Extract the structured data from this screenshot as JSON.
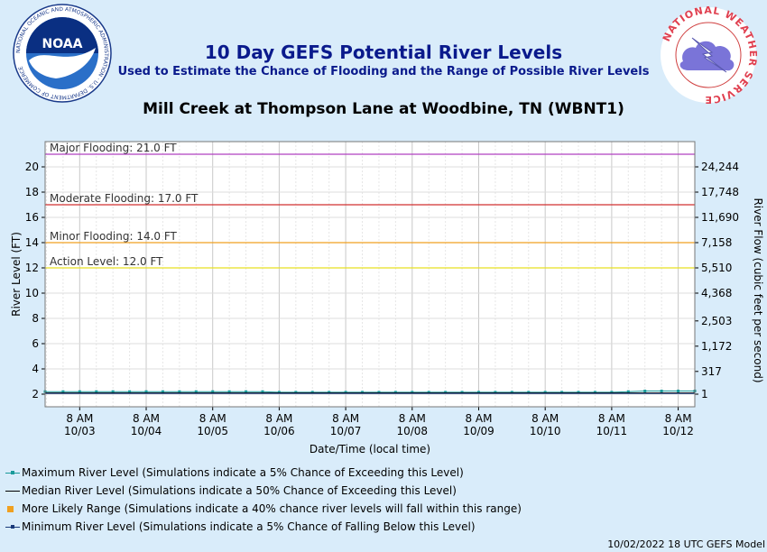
{
  "header": {
    "title": "10 Day GEFS Potential River Levels",
    "subtitle": "Used to Estimate the Chance of Flooding and the Range of Possible River Levels",
    "location": "Mill Creek at Thompson Lane at Woodbine, TN (WBNT1)"
  },
  "logos": {
    "noaa_ring": "NATIONAL OCEANIC AND ATMOSPHERIC ADMINISTRATION · U.S. DEPARTMENT OF COMMERCE",
    "noaa_word": "NOAA",
    "nws_ring": "NATIONAL WEATHER SERVICE"
  },
  "chart_data": {
    "type": "line",
    "xlabel": "Date/Time (local time)",
    "ylabel": "River Level (FT)",
    "y2label": "River Flow (cubic feet per second)",
    "ylim": [
      1,
      22
    ],
    "yticks": [
      2,
      4,
      6,
      8,
      10,
      12,
      14,
      16,
      18,
      20
    ],
    "y2ticks": [
      {
        "stage": 2,
        "label": "1"
      },
      {
        "stage": 3.8,
        "label": "317"
      },
      {
        "stage": 5.8,
        "label": "1,172"
      },
      {
        "stage": 7.8,
        "label": "2,503"
      },
      {
        "stage": 10,
        "label": "4,368"
      },
      {
        "stage": 12,
        "label": "5,510"
      },
      {
        "stage": 14,
        "label": "7,158"
      },
      {
        "stage": 16,
        "label": "11,690"
      },
      {
        "stage": 18,
        "label": "17,748"
      },
      {
        "stage": 20,
        "label": "24,244"
      }
    ],
    "xticks": [
      {
        "t": 0,
        "line1": "8 AM",
        "line2": "10/03"
      },
      {
        "t": 1,
        "line1": "8 AM",
        "line2": "10/04"
      },
      {
        "t": 2,
        "line1": "8 AM",
        "line2": "10/05"
      },
      {
        "t": 3,
        "line1": "8 AM",
        "line2": "10/06"
      },
      {
        "t": 4,
        "line1": "8 AM",
        "line2": "10/07"
      },
      {
        "t": 5,
        "line1": "8 AM",
        "line2": "10/08"
      },
      {
        "t": 6,
        "line1": "8 AM",
        "line2": "10/09"
      },
      {
        "t": 7,
        "line1": "8 AM",
        "line2": "10/10"
      },
      {
        "t": 8,
        "line1": "8 AM",
        "line2": "10/11"
      },
      {
        "t": 9,
        "line1": "8 AM",
        "line2": "10/12"
      }
    ],
    "xlim": [
      -0.52,
      9.25
    ],
    "thresholds": [
      {
        "label": "Major Flooding: 21.0 FT",
        "value": 21.0,
        "color": "#b040c0"
      },
      {
        "label": "Moderate Flooding: 17.0 FT",
        "value": 17.0,
        "color": "#d03030"
      },
      {
        "label": "Minor Flooding: 14.0 FT",
        "value": 14.0,
        "color": "#f0a020"
      },
      {
        "label": "Action Level: 12.0 FT",
        "value": 12.0,
        "color": "#e8e020"
      }
    ],
    "series": [
      {
        "key": "max",
        "color": "#1a9a9a",
        "x": [
          -0.52,
          -0.25,
          0.0,
          0.25,
          0.5,
          0.75,
          1.0,
          1.25,
          1.5,
          1.75,
          2.0,
          2.25,
          2.5,
          2.75,
          3.0,
          3.25,
          3.5,
          3.75,
          4.0,
          4.25,
          4.5,
          4.75,
          5.0,
          5.25,
          5.5,
          5.75,
          6.0,
          6.25,
          6.5,
          6.75,
          7.0,
          7.25,
          7.5,
          7.75,
          8.0,
          8.25,
          8.5,
          8.75,
          9.0,
          9.25
        ],
        "y": [
          2.2,
          2.2,
          2.2,
          2.2,
          2.2,
          2.2,
          2.2,
          2.2,
          2.2,
          2.2,
          2.2,
          2.2,
          2.2,
          2.2,
          2.15,
          2.15,
          2.15,
          2.15,
          2.15,
          2.15,
          2.15,
          2.15,
          2.15,
          2.15,
          2.15,
          2.15,
          2.15,
          2.15,
          2.15,
          2.15,
          2.15,
          2.15,
          2.15,
          2.15,
          2.15,
          2.2,
          2.25,
          2.25,
          2.25,
          2.25
        ]
      },
      {
        "key": "median",
        "color": "#000000",
        "x": [
          -0.52,
          9.25
        ],
        "y": [
          2.1,
          2.1
        ]
      },
      {
        "key": "min",
        "color": "#1a3a7a",
        "x": [
          -0.52,
          9.25
        ],
        "y": [
          2.05,
          2.05
        ]
      }
    ]
  },
  "legend": {
    "items": [
      {
        "key": "max",
        "label": "Maximum River Level (Simulations indicate a 5% Chance of Exceeding this Level)",
        "color": "#1a9a9a"
      },
      {
        "key": "median",
        "label": "Median River Level (Simulations indicate a 50% Chance of Exceeding this Level)",
        "color": "#000000"
      },
      {
        "key": "range",
        "label": "More Likely Range (Simulations indicate a 40% chance river levels will fall within this range)",
        "color": "#f0a020"
      },
      {
        "key": "min",
        "label": "Minimum River Level (Simulations indicate a 5% Chance of Falling Below this Level)",
        "color": "#1a3a7a"
      }
    ]
  },
  "footer": "10/02/2022 18 UTC GEFS Model"
}
